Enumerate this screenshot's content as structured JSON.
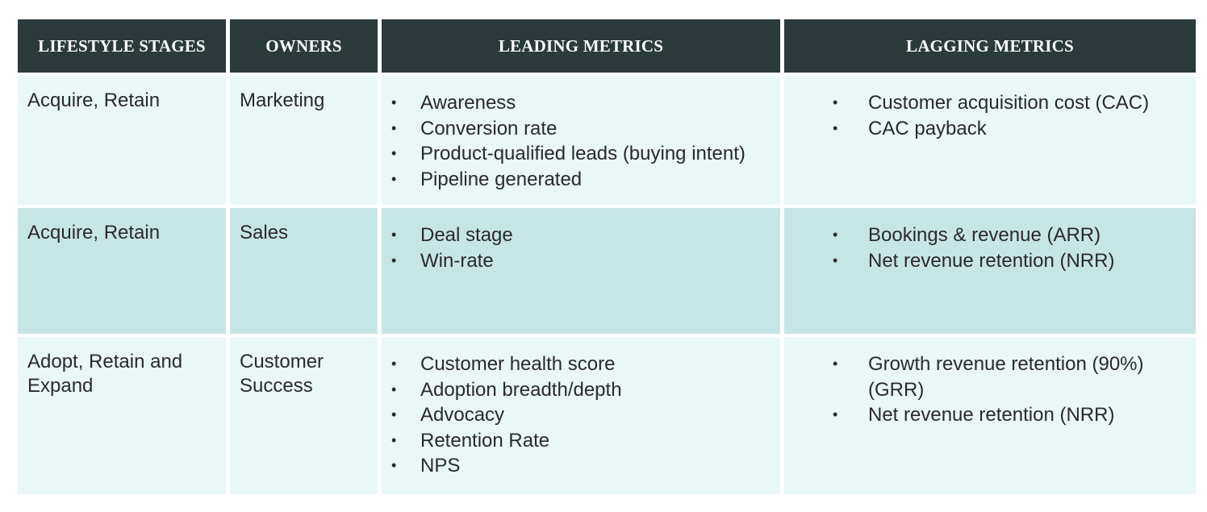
{
  "headers": [
    "LIFESTYLE STAGES",
    "OWNERS",
    "LEADING METRICS",
    "LAGGING METRICS"
  ],
  "rows": [
    {
      "stage": "Acquire, Retain",
      "owner": "Marketing",
      "leading": [
        "Awareness",
        "Conversion rate",
        "Product-qualified leads (buying intent)",
        "Pipeline generated"
      ],
      "lagging": [
        "Customer acquisition cost (CAC)",
        "CAC payback"
      ]
    },
    {
      "stage": "Acquire, Retain",
      "owner": "Sales",
      "leading": [
        "Deal stage",
        "Win-rate"
      ],
      "lagging": [
        "Bookings & revenue (ARR)",
        "Net revenue retention (NRR)"
      ]
    },
    {
      "stage": "Adopt, Retain and Expand",
      "owner": "Customer Success",
      "leading": [
        "Customer health score",
        "Adoption breadth/depth",
        "Advocacy",
        "Retention Rate",
        "NPS"
      ],
      "lagging": [
        "Growth revenue retention (90%) (GRR)",
        "Net revenue retention (NRR)"
      ]
    }
  ],
  "colors": {
    "header_bg": "#2b3a3a",
    "header_text": "#ffffff",
    "row_light": "#eaf7f7",
    "row_mid": "#c6e6e5",
    "cell_text": "#2a2a2a"
  },
  "bullet_glyph": "•"
}
